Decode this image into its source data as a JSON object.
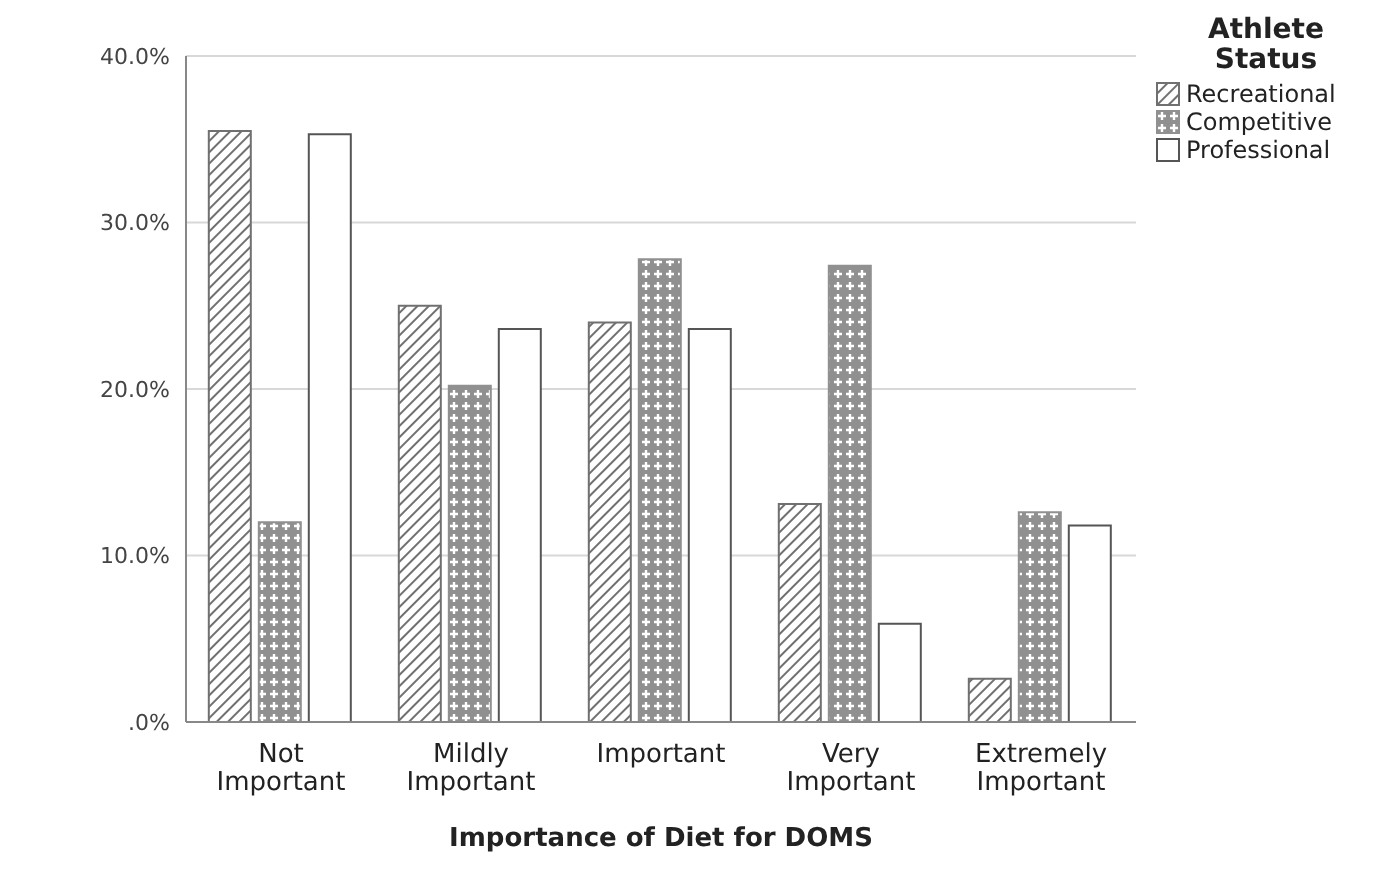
{
  "chart_data": {
    "type": "bar",
    "xlabel": "Importance of Diet for DOMS",
    "legend_title": "Athlete Status",
    "legend": "top right",
    "grid": "y",
    "categories": [
      "Not Important",
      "Mildly Important",
      "Important",
      "Very Important",
      "Extremely Important"
    ],
    "series": [
      {
        "name": "Recreational",
        "color": "#707070",
        "values": [
          35.5,
          25.0,
          24.0,
          13.1,
          2.6
        ]
      },
      {
        "name": "Competitive",
        "color": "#909090",
        "values": [
          12.0,
          20.2,
          27.8,
          27.4,
          12.6
        ]
      },
      {
        "name": "Professional",
        "color": "#ffffff",
        "values": [
          35.3,
          23.6,
          23.6,
          5.9,
          11.8
        ]
      }
    ],
    "ylim": [
      0,
      40
    ],
    "yticks": [
      {
        "value": 0,
        "label": ".0%"
      },
      {
        "value": 10,
        "label": "10.0%"
      },
      {
        "value": 20,
        "label": "20.0%"
      },
      {
        "value": 30,
        "label": "30.0%"
      },
      {
        "value": 40,
        "label": "40.0%"
      }
    ]
  }
}
